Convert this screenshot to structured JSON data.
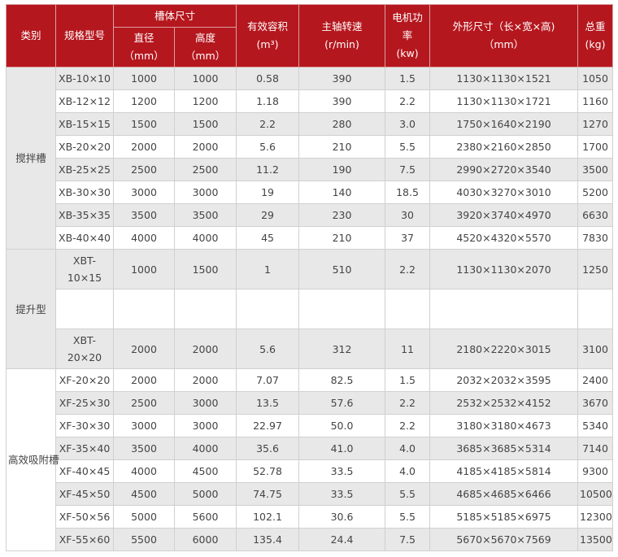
{
  "header": {
    "category": "类别",
    "model": "规格型号",
    "tank_size": "槽体尺寸",
    "diameter": "直径",
    "diameter_unit": "（mm）",
    "height": "高度",
    "height_unit": "（mm）",
    "volume": "有效容积",
    "volume_unit": "(m³)",
    "speed": "主轴转速",
    "speed_unit": "(r/min)",
    "power_1": "电机功",
    "power_2": "率",
    "power_unit": "(kw)",
    "dims": "外形尺寸（长×宽×高)",
    "dims_unit": "（mm）",
    "weight": "总重",
    "weight_unit": "(kg)"
  },
  "groups": [
    {
      "category": "搅拌槽",
      "rows": [
        [
          "XB-10×10",
          "1000",
          "1000",
          "0.58",
          "390",
          "1.5",
          "1130×1130×1521",
          "1050"
        ],
        [
          "XB-12×12",
          "1200",
          "1200",
          "1.18",
          "390",
          "2.2",
          "1130×1130×1721",
          "1160"
        ],
        [
          "XB-15×15",
          "1500",
          "1500",
          "2.2",
          "280",
          "3.0",
          "1750×1640×2190",
          "1270"
        ],
        [
          "XB-20×20",
          "2000",
          "2000",
          "5.6",
          "210",
          "5.5",
          "2380×2160×2850",
          "1700"
        ],
        [
          "XB-25×25",
          "2500",
          "2500",
          "11.2",
          "190",
          "7.5",
          "2990×2720×3540",
          "3500"
        ],
        [
          "XB-30×30",
          "3000",
          "3000",
          "19",
          "140",
          "18.5",
          "4030×3270×3010",
          "5200"
        ],
        [
          "XB-35×35",
          "3500",
          "3500",
          "29",
          "230",
          "30",
          "3920×3740×4970",
          "6630"
        ],
        [
          "XB-40×40",
          "4000",
          "4000",
          "45",
          "210",
          "37",
          "4520×4320×5570",
          "7830"
        ]
      ]
    },
    {
      "category": "提升型",
      "rows": [
        [
          "XBT-10×15",
          "1000",
          "1500",
          "1",
          "510",
          "2.2",
          "1130×1130×2070",
          "1250"
        ],
        [
          "",
          "",
          "",
          "",
          "",
          "",
          "",
          ""
        ],
        [
          "XBT-20×20",
          "2000",
          "2000",
          "5.6",
          "312",
          "11",
          "2180×2220×3015",
          "3100"
        ]
      ]
    },
    {
      "category": "高效吸附槽",
      "rows": [
        [
          "XF-20×20",
          "2000",
          "2000",
          "7.07",
          "82.5",
          "1.5",
          "2032×2032×3595",
          "2400"
        ],
        [
          "XF-25×30",
          "2500",
          "3000",
          "13.5",
          "57.6",
          "2.2",
          "2532×2532×4152",
          "3670"
        ],
        [
          "XF-30×30",
          "3000",
          "3000",
          "22.97",
          "50.0",
          "2.2",
          "3180×3180×4673",
          "5340"
        ],
        [
          "XF-35×40",
          "3500",
          "4000",
          "35.6",
          "41.0",
          "4.0",
          "3685×3685×5314",
          "7140"
        ],
        [
          "XF-40×45",
          "4000",
          "4500",
          "52.78",
          "33.5",
          "4.0",
          "4185×4185×5814",
          "9300"
        ],
        [
          "XF-45×50",
          "4500",
          "5000",
          "74.75",
          "33.5",
          "5.5",
          "4685×4685×6466",
          "10500"
        ],
        [
          "XF-50×56",
          "5000",
          "5600",
          "102.1",
          "30.6",
          "5.5",
          "5185×5185×6975",
          "12300"
        ],
        [
          "XF-55×60",
          "5500",
          "6000",
          "135.4",
          "24.4",
          "7.5",
          "5670×5670×7569",
          "13500"
        ]
      ]
    }
  ],
  "colors": {
    "header_bg": "#b5171e",
    "stripe": "#e8e8e8"
  }
}
